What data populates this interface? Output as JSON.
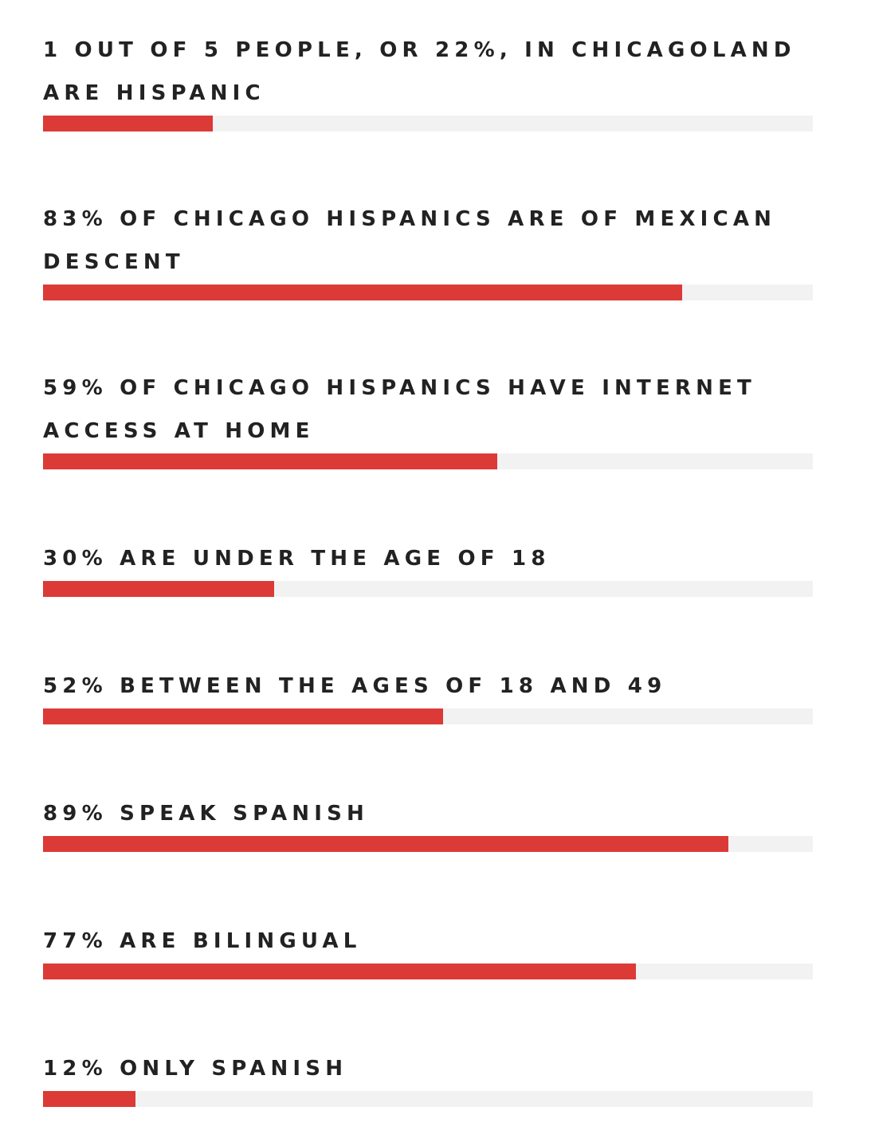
{
  "colors": {
    "bar_fill": "#dc3a36",
    "bar_track": "#f2f2f2",
    "text": "#222222"
  },
  "chart_data": {
    "type": "bar",
    "orientation": "horizontal",
    "title": "",
    "xlabel": "",
    "ylabel": "",
    "xlim": [
      0,
      100
    ],
    "grid": false,
    "legend": "none",
    "categories": [
      "1 out of 5 people, or 22%, in Chicagoland are Hispanic",
      "83% of Chicago Hispanics are of Mexican descent",
      "59% of Chicago Hispanics have internet access at home",
      "30% are under the age of 18",
      "52% between the ages of 18 and 49",
      "89% speak Spanish",
      "77% are bilingual",
      "12% only Spanish"
    ],
    "values": [
      22,
      83,
      59,
      30,
      52,
      89,
      77,
      12
    ]
  }
}
